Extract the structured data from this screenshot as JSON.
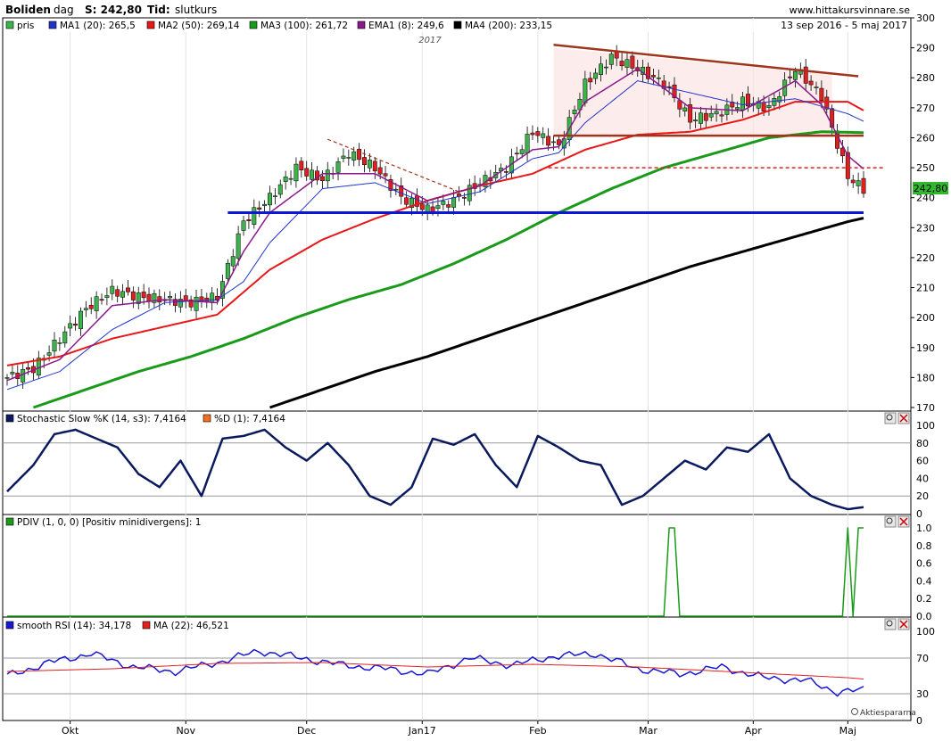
{
  "header": {
    "ticker": "Boliden",
    "interval": "dag",
    "price_label": "S: 242,80",
    "time_label": "Tid:",
    "time_value": "slutkurs",
    "source": "www.hittakursvinnare.se",
    "date_range": "13 sep 2016 - 5 maj 2017",
    "year_marker": "2017"
  },
  "colors": {
    "price_up": "#3cb44b",
    "price_down": "#e02020",
    "ma1": "#2233cc",
    "ma2": "#e81818",
    "ma3": "#1a9a1a",
    "ema1": "#8a1a8a",
    "ma4": "#000000",
    "support": "#0a16d8",
    "resistance": "#a0341c",
    "dashed_red": "#e02020",
    "stoch": "#0b1a5e",
    "pdiv": "#1a9a1a",
    "rsi": "#1818d0",
    "rsi_ma": "#e02020",
    "last_price_bg": "#2eb82e"
  },
  "legend_price": [
    {
      "label": "pris",
      "color": "#3cb44b"
    },
    {
      "label": "MA1 (20): 265,5",
      "color": "#2233cc"
    },
    {
      "label": "MA2 (50): 269,14",
      "color": "#e81818"
    },
    {
      "label": "MA3 (100): 261,72",
      "color": "#1a9a1a"
    },
    {
      "label": "EMA1 (8): 249,6",
      "color": "#8a1a8a"
    },
    {
      "label": "MA4 (200): 233,15",
      "color": "#000000"
    }
  ],
  "legend_stoch": [
    {
      "label": "Stochastic Slow %K (14, s3): 7,4164",
      "color": "#0b1a5e"
    },
    {
      "label": "%D (1): 7,4164",
      "color": "#f07020"
    }
  ],
  "legend_pdiv": [
    {
      "label": "PDIV (1, 0, 0) [Positiv minidivergens]: 1",
      "color": "#1a9a1a"
    }
  ],
  "legend_rsi": [
    {
      "label": "smooth RSI (14): 34,178",
      "color": "#1818d0"
    },
    {
      "label": "MA (22): 46,521",
      "color": "#e02020"
    }
  ],
  "last_price": "242,80",
  "watermark": "Aktiespararna",
  "x_labels": [
    "Okt",
    "Nov",
    "Dec",
    "Jan17",
    "Feb",
    "Mar",
    "Apr",
    "Maj"
  ],
  "y_labels": {
    "price": [
      "300",
      "290",
      "280",
      "270",
      "260",
      "250",
      "240",
      "230",
      "220",
      "210",
      "200",
      "190",
      "180",
      "170"
    ],
    "stoch": [
      "100",
      "80",
      "60",
      "40",
      "20",
      "0"
    ],
    "pdiv": [
      "1.0",
      "0.8",
      "0.6",
      "0.4",
      "0.2",
      "0.0"
    ],
    "rsi": [
      "100",
      "70",
      "30",
      "0"
    ]
  },
  "chart_data": [
    {
      "type": "line",
      "title": "Boliden - dag",
      "x_range": [
        "13 sep 2016",
        "5 maj 2017"
      ],
      "ylim": [
        170,
        300
      ],
      "series": [
        {
          "name": "pris",
          "x": [
            0,
            5,
            10,
            15,
            20,
            25,
            30,
            35,
            40,
            45,
            50,
            55,
            60,
            65,
            70,
            75,
            80,
            85,
            90,
            95,
            100,
            105,
            110,
            115,
            120,
            125,
            130,
            135,
            140,
            145,
            150,
            155,
            160,
            163
          ],
          "values": [
            180,
            183,
            193,
            203,
            209,
            207,
            206,
            205,
            207,
            232,
            240,
            250,
            246,
            255,
            250,
            240,
            236,
            239,
            245,
            250,
            262,
            257,
            278,
            287,
            283,
            278,
            266,
            268,
            272,
            270,
            283,
            274,
            247,
            242.8
          ]
        },
        {
          "name": "MA1 (20)",
          "x": [
            0,
            10,
            20,
            30,
            40,
            45,
            50,
            60,
            70,
            80,
            90,
            100,
            105,
            110,
            120,
            130,
            140,
            150,
            160,
            163
          ],
          "values": [
            176,
            182,
            196,
            205,
            206,
            212,
            225,
            243,
            245,
            238,
            242,
            253,
            255,
            265,
            279,
            275,
            271,
            273,
            268,
            265.5
          ]
        },
        {
          "name": "MA2 (50)",
          "x": [
            0,
            10,
            20,
            30,
            40,
            50,
            60,
            70,
            80,
            90,
            100,
            110,
            120,
            130,
            140,
            150,
            160,
            163
          ],
          "values": [
            184,
            187,
            193,
            197,
            201,
            216,
            226,
            233,
            239,
            244,
            248,
            256,
            261,
            262,
            266,
            272,
            272,
            269.1
          ]
        },
        {
          "name": "MA3 (100)",
          "x": [
            5,
            15,
            25,
            35,
            45,
            55,
            65,
            75,
            85,
            95,
            105,
            115,
            125,
            135,
            145,
            155,
            163
          ],
          "values": [
            170,
            176,
            182,
            187,
            193,
            200,
            206,
            211,
            218,
            226,
            235,
            243,
            250,
            255,
            260,
            262,
            261.7
          ]
        },
        {
          "name": "EMA1 (8)",
          "x": [
            0,
            10,
            20,
            30,
            40,
            45,
            50,
            60,
            70,
            80,
            90,
            100,
            105,
            110,
            120,
            130,
            140,
            150,
            155,
            160,
            163
          ],
          "values": [
            179,
            186,
            204,
            206,
            205,
            222,
            235,
            248,
            248,
            239,
            244,
            256,
            257,
            272,
            283,
            270,
            269,
            279,
            271,
            254,
            249.6
          ]
        },
        {
          "name": "MA4 (200)",
          "x": [
            50,
            60,
            70,
            80,
            90,
            100,
            110,
            120,
            130,
            140,
            150,
            160,
            163
          ],
          "values": [
            170,
            176,
            182,
            187,
            193,
            199,
            205,
            211,
            217,
            222,
            227,
            232,
            233.2
          ]
        }
      ]
    },
    {
      "type": "line",
      "title": "Stochastic Slow %K (14, s3)",
      "ylim": [
        0,
        100
      ],
      "series": [
        {
          "name": "%K",
          "x": [
            0,
            5,
            9,
            13,
            17,
            21,
            25,
            29,
            33,
            37,
            41,
            45,
            49,
            53,
            57,
            61,
            65,
            69,
            73,
            77,
            81,
            85,
            89,
            93,
            97,
            101,
            105,
            109,
            113,
            117,
            121,
            125,
            129,
            133,
            137,
            141,
            145,
            149,
            153,
            157,
            160,
            163
          ],
          "values": [
            25,
            55,
            90,
            95,
            85,
            75,
            45,
            30,
            60,
            20,
            85,
            88,
            95,
            75,
            60,
            80,
            55,
            20,
            10,
            30,
            85,
            78,
            90,
            55,
            30,
            88,
            75,
            60,
            55,
            10,
            20,
            40,
            60,
            50,
            75,
            70,
            90,
            40,
            20,
            10,
            5,
            7.4
          ]
        }
      ]
    },
    {
      "type": "line",
      "title": "PDIV (1, 0, 0) [Positiv minidivergens]",
      "ylim": [
        0,
        1
      ],
      "series": [
        {
          "name": "PDIV",
          "x": [
            0,
            125,
            126,
            127,
            128,
            159,
            160,
            161,
            162,
            163
          ],
          "values": [
            0,
            0,
            1,
            1,
            0,
            0,
            1,
            0,
            1,
            1
          ]
        }
      ]
    },
    {
      "type": "line",
      "title": "smooth RSI (14)",
      "ylim": [
        0,
        100
      ],
      "series": [
        {
          "name": "smooth RSI (14)",
          "x": [
            0,
            8,
            16,
            24,
            32,
            40,
            48,
            56,
            64,
            72,
            80,
            88,
            96,
            104,
            112,
            120,
            128,
            136,
            144,
            152,
            158,
            163
          ],
          "values": [
            50,
            65,
            75,
            60,
            55,
            65,
            78,
            70,
            62,
            58,
            52,
            70,
            62,
            72,
            75,
            58,
            52,
            60,
            48,
            45,
            32,
            34.2
          ]
        },
        {
          "name": "MA (22)",
          "x": [
            0,
            20,
            40,
            60,
            80,
            100,
            120,
            140,
            160,
            163
          ],
          "values": [
            55,
            58,
            64,
            65,
            60,
            63,
            60,
            54,
            48,
            46.5
          ]
        }
      ]
    }
  ]
}
